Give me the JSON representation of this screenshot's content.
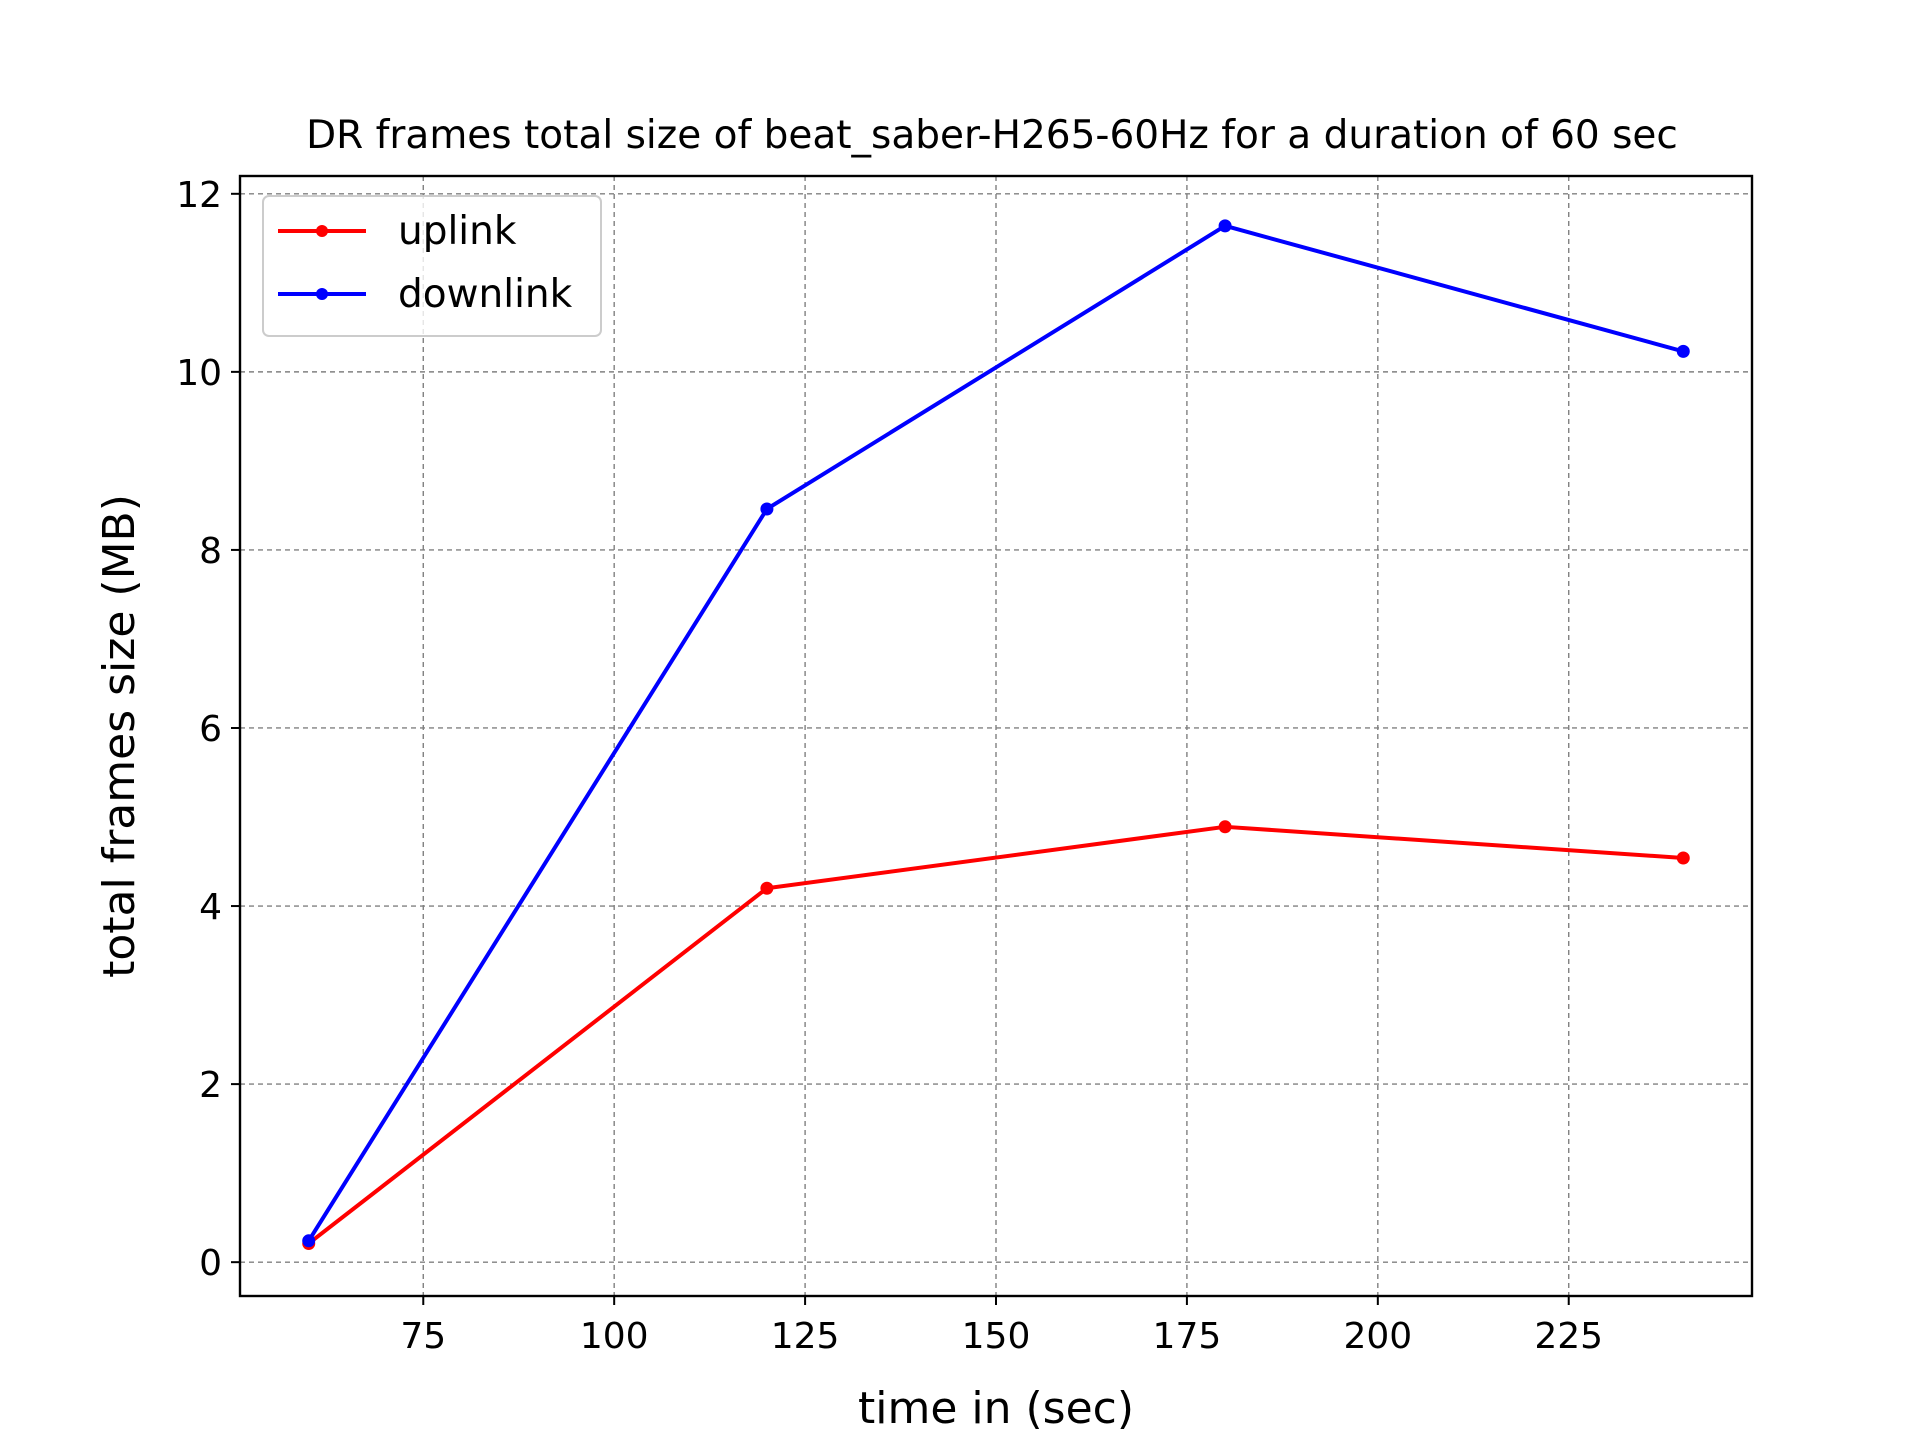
{
  "chart_data": {
    "type": "line",
    "title": "DR frames total size of beat_saber-H265-60Hz for a duration of 60 sec",
    "xlabel": "time in (sec)",
    "ylabel": "total frames size (MB)",
    "x": [
      60,
      120,
      180,
      240
    ],
    "xlim": [
      51,
      249
    ],
    "ylim": [
      -0.38,
      12.2
    ],
    "xticks": [
      75,
      100,
      125,
      150,
      175,
      200,
      225
    ],
    "yticks": [
      0,
      2,
      4,
      6,
      8,
      10,
      12
    ],
    "grid": true,
    "legend_position": "top-left",
    "series": [
      {
        "name": "uplink",
        "color": "#ff0000",
        "values": [
          0.21,
          4.2,
          4.89,
          4.54
        ]
      },
      {
        "name": "downlink",
        "color": "#0000ff",
        "values": [
          0.24,
          8.46,
          11.64,
          10.23
        ]
      }
    ]
  }
}
